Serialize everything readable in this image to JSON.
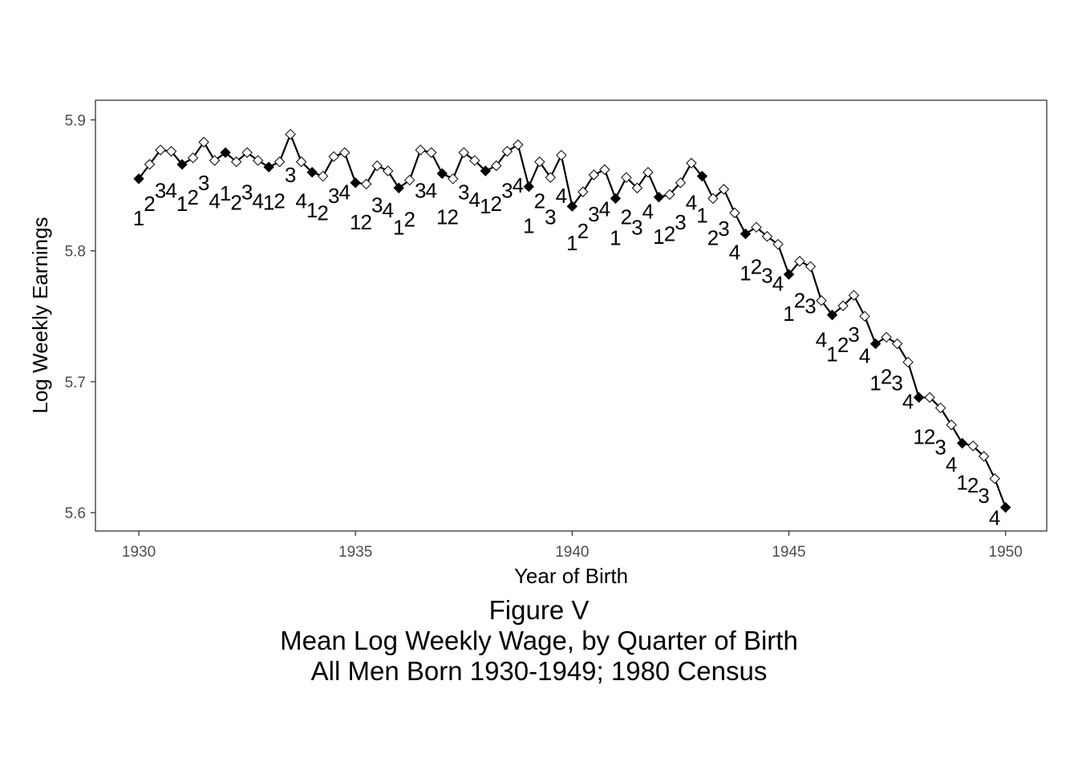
{
  "chart_data": {
    "type": "line",
    "xlabel": "Year of Birth",
    "ylabel": "Log Weekly Earnings",
    "xlim": [
      1929.0,
      1950.95
    ],
    "ylim": [
      5.586,
      5.915
    ],
    "x_ticks": [
      "1930",
      "1935",
      "1940",
      "1945",
      "1950"
    ],
    "y_ticks": [
      "5.6",
      "5.7",
      "5.8",
      "5.9"
    ],
    "grid": false,
    "marker_legend": "filled diamond = quarter 1 (4th quarter at 1950); open diamond = other quarters",
    "points": [
      [
        1930.0,
        5.855,
        1
      ],
      [
        1930.25,
        5.866,
        2
      ],
      [
        1930.5,
        5.877,
        3
      ],
      [
        1930.75,
        5.876,
        4
      ],
      [
        1931.0,
        5.866,
        1
      ],
      [
        1931.25,
        5.871,
        2
      ],
      [
        1931.5,
        5.883,
        3
      ],
      [
        1931.75,
        5.869,
        4
      ],
      [
        1932.0,
        5.875,
        1
      ],
      [
        1932.25,
        5.868,
        2
      ],
      [
        1932.5,
        5.875,
        3
      ],
      [
        1932.75,
        5.869,
        4
      ],
      [
        1933.0,
        5.864,
        1
      ],
      [
        1933.25,
        5.868,
        2
      ],
      [
        1933.5,
        5.889,
        3
      ],
      [
        1933.75,
        5.868,
        4
      ],
      [
        1934.0,
        5.86,
        1
      ],
      [
        1934.25,
        5.857,
        2
      ],
      [
        1934.5,
        5.872,
        3
      ],
      [
        1934.75,
        5.875,
        4
      ],
      [
        1935.0,
        5.852,
        1
      ],
      [
        1935.25,
        5.851,
        2
      ],
      [
        1935.5,
        5.865,
        3
      ],
      [
        1935.75,
        5.861,
        4
      ],
      [
        1936.0,
        5.848,
        1
      ],
      [
        1936.25,
        5.854,
        2
      ],
      [
        1936.5,
        5.877,
        3
      ],
      [
        1936.75,
        5.875,
        4
      ],
      [
        1937.0,
        5.859,
        1
      ],
      [
        1937.25,
        5.855,
        2
      ],
      [
        1937.5,
        5.875,
        3
      ],
      [
        1937.75,
        5.869,
        4
      ],
      [
        1938.0,
        5.861,
        1
      ],
      [
        1938.25,
        5.865,
        2
      ],
      [
        1938.5,
        5.876,
        3
      ],
      [
        1938.75,
        5.881,
        4
      ],
      [
        1939.0,
        5.849,
        1
      ],
      [
        1939.25,
        5.868,
        2
      ],
      [
        1939.5,
        5.856,
        3
      ],
      [
        1939.75,
        5.873,
        4
      ],
      [
        1940.0,
        5.834,
        1
      ],
      [
        1940.25,
        5.845,
        2
      ],
      [
        1940.5,
        5.858,
        3
      ],
      [
        1940.75,
        5.862,
        4
      ],
      [
        1941.0,
        5.84,
        1
      ],
      [
        1941.25,
        5.856,
        2
      ],
      [
        1941.5,
        5.848,
        3
      ],
      [
        1941.75,
        5.86,
        4
      ],
      [
        1942.0,
        5.841,
        1
      ],
      [
        1942.25,
        5.843,
        2
      ],
      [
        1942.5,
        5.852,
        3
      ],
      [
        1942.75,
        5.867,
        4
      ],
      [
        1943.0,
        5.857,
        1
      ],
      [
        1943.25,
        5.84,
        2
      ],
      [
        1943.5,
        5.847,
        3
      ],
      [
        1943.75,
        5.829,
        4
      ],
      [
        1944.0,
        5.813,
        1
      ],
      [
        1944.25,
        5.818,
        2
      ],
      [
        1944.5,
        5.811,
        3
      ],
      [
        1944.75,
        5.805,
        4
      ],
      [
        1945.0,
        5.782,
        1
      ],
      [
        1945.25,
        5.792,
        2
      ],
      [
        1945.5,
        5.788,
        3
      ],
      [
        1945.75,
        5.762,
        4
      ],
      [
        1946.0,
        5.751,
        1
      ],
      [
        1946.25,
        5.758,
        2
      ],
      [
        1946.5,
        5.766,
        3
      ],
      [
        1946.75,
        5.75,
        4
      ],
      [
        1947.0,
        5.729,
        1
      ],
      [
        1947.25,
        5.734,
        2
      ],
      [
        1947.5,
        5.729,
        3
      ],
      [
        1947.75,
        5.715,
        4
      ],
      [
        1948.0,
        5.688,
        1
      ],
      [
        1948.25,
        5.688,
        2
      ],
      [
        1948.5,
        5.68,
        3
      ],
      [
        1948.75,
        5.667,
        4
      ],
      [
        1949.0,
        5.653,
        1
      ],
      [
        1949.25,
        5.651,
        2
      ],
      [
        1949.5,
        5.643,
        3
      ],
      [
        1949.75,
        5.626,
        4
      ],
      [
        1950.0,
        5.604,
        4
      ]
    ],
    "quarter_labels": [
      {
        "x": 1930.0,
        "y": 5.825,
        "text": "1"
      },
      {
        "x": 1930.25,
        "y": 5.836,
        "text": "2"
      },
      {
        "x": 1930.5,
        "y": 5.846,
        "text": "3"
      },
      {
        "x": 1930.75,
        "y": 5.846,
        "text": "4"
      },
      {
        "x": 1931.0,
        "y": 5.836,
        "text": "1"
      },
      {
        "x": 1931.25,
        "y": 5.841,
        "text": "2"
      },
      {
        "x": 1931.5,
        "y": 5.852,
        "text": "3"
      },
      {
        "x": 1931.75,
        "y": 5.838,
        "text": "4"
      },
      {
        "x": 1932.0,
        "y": 5.844,
        "text": "1"
      },
      {
        "x": 1932.25,
        "y": 5.837,
        "text": "2"
      },
      {
        "x": 1932.5,
        "y": 5.845,
        "text": "3"
      },
      {
        "x": 1932.75,
        "y": 5.838,
        "text": "4"
      },
      {
        "x": 1933.0,
        "y": 5.837,
        "text": "1"
      },
      {
        "x": 1933.25,
        "y": 5.838,
        "text": "2"
      },
      {
        "x": 1933.5,
        "y": 5.858,
        "text": "3"
      },
      {
        "x": 1933.75,
        "y": 5.838,
        "text": "4"
      },
      {
        "x": 1934.0,
        "y": 5.831,
        "text": "1"
      },
      {
        "x": 1934.25,
        "y": 5.829,
        "text": "2"
      },
      {
        "x": 1934.5,
        "y": 5.842,
        "text": "3"
      },
      {
        "x": 1934.75,
        "y": 5.845,
        "text": "4"
      },
      {
        "x": 1935.0,
        "y": 5.822,
        "text": "1"
      },
      {
        "x": 1935.25,
        "y": 5.822,
        "text": "2"
      },
      {
        "x": 1935.5,
        "y": 5.835,
        "text": "3"
      },
      {
        "x": 1935.75,
        "y": 5.831,
        "text": "4"
      },
      {
        "x": 1936.0,
        "y": 5.818,
        "text": "1"
      },
      {
        "x": 1936.25,
        "y": 5.824,
        "text": "2"
      },
      {
        "x": 1936.5,
        "y": 5.846,
        "text": "3"
      },
      {
        "x": 1936.75,
        "y": 5.846,
        "text": "4"
      },
      {
        "x": 1937.0,
        "y": 5.826,
        "text": "1"
      },
      {
        "x": 1937.25,
        "y": 5.826,
        "text": "2"
      },
      {
        "x": 1937.5,
        "y": 5.845,
        "text": "3"
      },
      {
        "x": 1937.75,
        "y": 5.839,
        "text": "4"
      },
      {
        "x": 1938.0,
        "y": 5.834,
        "text": "1"
      },
      {
        "x": 1938.25,
        "y": 5.836,
        "text": "2"
      },
      {
        "x": 1938.5,
        "y": 5.846,
        "text": "3"
      },
      {
        "x": 1938.75,
        "y": 5.85,
        "text": "4"
      },
      {
        "x": 1939.0,
        "y": 5.819,
        "text": "1"
      },
      {
        "x": 1939.25,
        "y": 5.838,
        "text": "2"
      },
      {
        "x": 1939.5,
        "y": 5.826,
        "text": "3"
      },
      {
        "x": 1939.75,
        "y": 5.842,
        "text": "4"
      },
      {
        "x": 1940.0,
        "y": 5.806,
        "text": "1"
      },
      {
        "x": 1940.25,
        "y": 5.815,
        "text": "2"
      },
      {
        "x": 1940.5,
        "y": 5.828,
        "text": "3"
      },
      {
        "x": 1940.75,
        "y": 5.832,
        "text": "4"
      },
      {
        "x": 1941.0,
        "y": 5.81,
        "text": "1"
      },
      {
        "x": 1941.25,
        "y": 5.826,
        "text": "2"
      },
      {
        "x": 1941.5,
        "y": 5.818,
        "text": "3"
      },
      {
        "x": 1941.75,
        "y": 5.83,
        "text": "4"
      },
      {
        "x": 1942.0,
        "y": 5.811,
        "text": "1"
      },
      {
        "x": 1942.25,
        "y": 5.813,
        "text": "2"
      },
      {
        "x": 1942.5,
        "y": 5.822,
        "text": "3"
      },
      {
        "x": 1942.75,
        "y": 5.837,
        "text": "4"
      },
      {
        "x": 1943.0,
        "y": 5.827,
        "text": "1"
      },
      {
        "x": 1943.25,
        "y": 5.81,
        "text": "2"
      },
      {
        "x": 1943.5,
        "y": 5.817,
        "text": "3"
      },
      {
        "x": 1943.75,
        "y": 5.799,
        "text": "4"
      },
      {
        "x": 1944.0,
        "y": 5.783,
        "text": "1"
      },
      {
        "x": 1944.25,
        "y": 5.788,
        "text": "2"
      },
      {
        "x": 1944.5,
        "y": 5.781,
        "text": "3"
      },
      {
        "x": 1944.75,
        "y": 5.775,
        "text": "4"
      },
      {
        "x": 1945.0,
        "y": 5.752,
        "text": "1"
      },
      {
        "x": 1945.25,
        "y": 5.762,
        "text": "2"
      },
      {
        "x": 1945.5,
        "y": 5.758,
        "text": "3"
      },
      {
        "x": 1945.75,
        "y": 5.732,
        "text": "4"
      },
      {
        "x": 1946.0,
        "y": 5.721,
        "text": "1"
      },
      {
        "x": 1946.25,
        "y": 5.728,
        "text": "2"
      },
      {
        "x": 1946.5,
        "y": 5.736,
        "text": "3"
      },
      {
        "x": 1946.75,
        "y": 5.72,
        "text": "4"
      },
      {
        "x": 1947.0,
        "y": 5.699,
        "text": "1"
      },
      {
        "x": 1947.25,
        "y": 5.704,
        "text": "2"
      },
      {
        "x": 1947.5,
        "y": 5.699,
        "text": "3"
      },
      {
        "x": 1947.75,
        "y": 5.685,
        "text": "4"
      },
      {
        "x": 1948.0,
        "y": 5.658,
        "text": "1"
      },
      {
        "x": 1948.25,
        "y": 5.658,
        "text": "2"
      },
      {
        "x": 1948.5,
        "y": 5.65,
        "text": "3"
      },
      {
        "x": 1948.75,
        "y": 5.637,
        "text": "4"
      },
      {
        "x": 1949.0,
        "y": 5.623,
        "text": "1"
      },
      {
        "x": 1949.25,
        "y": 5.621,
        "text": "2"
      },
      {
        "x": 1949.5,
        "y": 5.613,
        "text": "3"
      },
      {
        "x": 1949.75,
        "y": 5.596,
        "text": "4"
      }
    ]
  },
  "caption": {
    "line1": "Figure V",
    "line2": "Mean Log Weekly Wage, by Quarter of Birth",
    "line3": "All Men Born 1930-1949; 1980 Census"
  }
}
